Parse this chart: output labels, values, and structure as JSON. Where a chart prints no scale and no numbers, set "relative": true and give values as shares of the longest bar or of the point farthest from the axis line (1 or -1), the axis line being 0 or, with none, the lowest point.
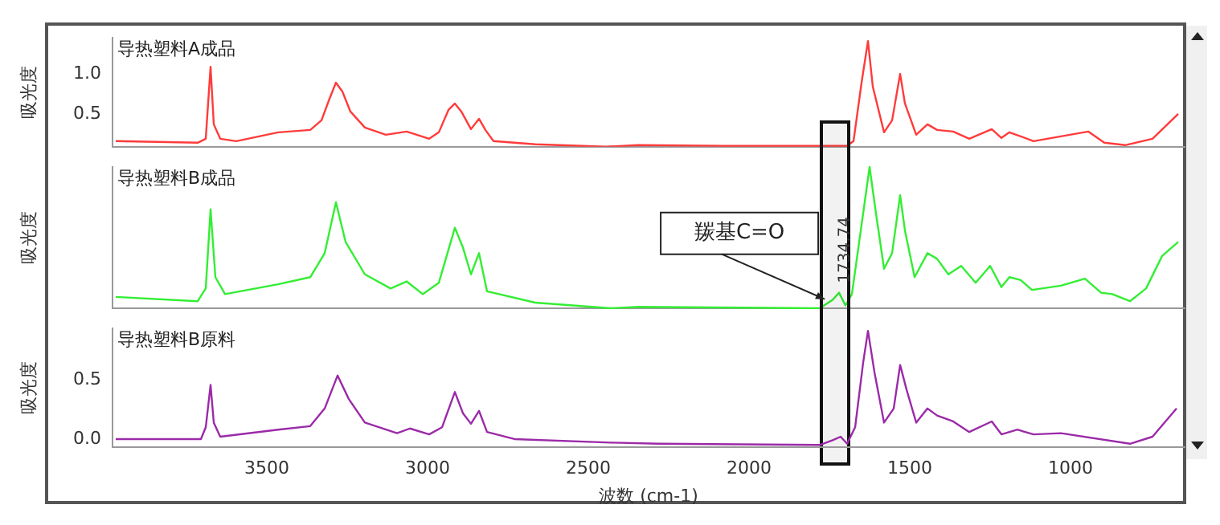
{
  "chart_data": [
    {
      "type": "line",
      "title": "导热塑料A成品",
      "ylabel": "吸光度",
      "xlim": [
        3980,
        645
      ],
      "xticks": [
        3500,
        3000,
        2500,
        2000,
        1500,
        1000
      ],
      "ylim": [
        0.09,
        1.45
      ],
      "yticks": [
        {
          "value": 1,
          "label": "1.0"
        },
        0.5
      ],
      "tick_labels": "y",
      "grid": false,
      "legend": false,
      "marker": "none",
      "line_style": "solid",
      "series": [
        {
          "color": "#ff3b3b",
          "x": [
            3970,
            3715,
            3690,
            3675,
            3665,
            3645,
            3595,
            3465,
            3365,
            3330,
            3305,
            3285,
            3265,
            3240,
            3195,
            3130,
            3065,
            2995,
            2965,
            2935,
            2915,
            2895,
            2865,
            2840,
            2820,
            2795,
            2665,
            2445,
            2345,
            2080,
            1695,
            1675,
            1650,
            1630,
            1615,
            1580,
            1555,
            1530,
            1515,
            1480,
            1445,
            1415,
            1365,
            1315,
            1245,
            1215,
            1190,
            1155,
            1115,
            1030,
            945,
            895,
            830,
            745,
            665
          ],
          "values": [
            0.16,
            0.14,
            0.19,
            1.09,
            0.37,
            0.19,
            0.16,
            0.27,
            0.3,
            0.42,
            0.69,
            0.89,
            0.78,
            0.53,
            0.33,
            0.24,
            0.28,
            0.19,
            0.27,
            0.55,
            0.63,
            0.53,
            0.31,
            0.44,
            0.3,
            0.16,
            0.12,
            0.09,
            0.11,
            0.1,
            0.1,
            0.16,
            0.89,
            1.41,
            0.84,
            0.27,
            0.42,
            1.0,
            0.63,
            0.24,
            0.37,
            0.3,
            0.28,
            0.19,
            0.31,
            0.2,
            0.27,
            0.22,
            0.16,
            0.22,
            0.28,
            0.14,
            0.11,
            0.19,
            0.5
          ]
        }
      ]
    },
    {
      "type": "line",
      "title": "导热塑料B成品",
      "ylabel": "吸光度",
      "xlim": [
        3980,
        645
      ],
      "relative": true,
      "tick_labels": false,
      "grid": false,
      "legend": false,
      "marker": "none",
      "line_style": "solid",
      "annotations": [
        {
          "text": "羰基C=O",
          "x": 1734.74,
          "y": 0.11
        },
        {
          "text": "1734.74",
          "x": 1734.74,
          "y": 0.11
        }
      ],
      "bands": [
        {
          "axis": "x",
          "from": 1775,
          "to": 1690
        }
      ],
      "series": [
        {
          "color": "#33ee33",
          "x": [
            3970,
            3715,
            3690,
            3675,
            3660,
            3630,
            3465,
            3365,
            3320,
            3285,
            3255,
            3195,
            3115,
            3065,
            3015,
            2965,
            2915,
            2890,
            2865,
            2840,
            2815,
            2665,
            2430,
            2345,
            1780,
            1740,
            1720,
            1700,
            1680,
            1650,
            1625,
            1605,
            1580,
            1555,
            1530,
            1515,
            1485,
            1445,
            1415,
            1380,
            1340,
            1295,
            1250,
            1215,
            1190,
            1155,
            1120,
            1030,
            955,
            905,
            870,
            815,
            765,
            715,
            665
          ],
          "values": [
            0.08,
            0.05,
            0.14,
            0.7,
            0.22,
            0.1,
            0.17,
            0.22,
            0.39,
            0.75,
            0.47,
            0.24,
            0.14,
            0.19,
            0.1,
            0.18,
            0.57,
            0.43,
            0.24,
            0.39,
            0.12,
            0.04,
            0.0,
            0.01,
            0.0,
            0.06,
            0.11,
            0.02,
            0.1,
            0.59,
            1.0,
            0.67,
            0.28,
            0.39,
            0.8,
            0.55,
            0.22,
            0.39,
            0.35,
            0.24,
            0.3,
            0.18,
            0.3,
            0.15,
            0.22,
            0.2,
            0.13,
            0.16,
            0.21,
            0.11,
            0.1,
            0.05,
            0.14,
            0.37,
            0.47
          ]
        }
      ]
    },
    {
      "type": "line",
      "title": "导热塑料B原料",
      "ylabel": "吸光度",
      "xlabel": "波数 (cm-1)",
      "xlim": [
        3980,
        645
      ],
      "xticks": [
        3500,
        3000,
        2500,
        2000,
        1500,
        1000
      ],
      "ylim": [
        -0.07,
        0.94
      ],
      "yticks": [
        {
          "value": 0,
          "label": "0.0"
        },
        0.5
      ],
      "grid": false,
      "legend": false,
      "marker": "none",
      "line_style": "solid",
      "series": [
        {
          "color": "#9b2aa8",
          "x": [
            3970,
            3705,
            3690,
            3675,
            3665,
            3645,
            3465,
            3365,
            3320,
            3280,
            3245,
            3195,
            3095,
            3055,
            2995,
            2955,
            2915,
            2890,
            2865,
            2840,
            2815,
            2730,
            2430,
            2280,
            1780,
            1740,
            1715,
            1695,
            1670,
            1645,
            1630,
            1610,
            1580,
            1550,
            1530,
            1510,
            1480,
            1445,
            1415,
            1365,
            1315,
            1245,
            1215,
            1165,
            1115,
            1030,
            815,
            745,
            670
          ],
          "values": [
            0.0,
            0.0,
            0.1,
            0.46,
            0.14,
            0.02,
            0.08,
            0.11,
            0.26,
            0.54,
            0.34,
            0.14,
            0.05,
            0.09,
            0.04,
            0.1,
            0.4,
            0.22,
            0.13,
            0.24,
            0.06,
            0.0,
            -0.03,
            -0.04,
            -0.05,
            -0.01,
            0.02,
            -0.04,
            0.1,
            0.65,
            0.92,
            0.57,
            0.14,
            0.26,
            0.63,
            0.42,
            0.14,
            0.26,
            0.2,
            0.15,
            0.06,
            0.15,
            0.04,
            0.08,
            0.04,
            0.05,
            -0.04,
            0.02,
            0.26
          ]
        }
      ]
    }
  ]
}
